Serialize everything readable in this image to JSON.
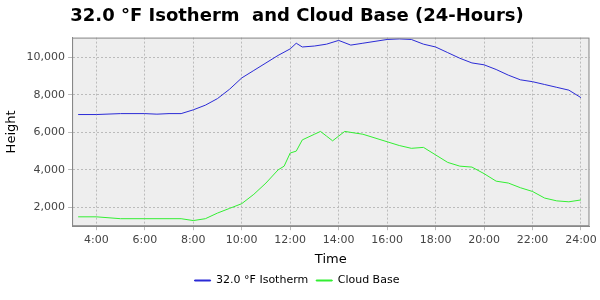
{
  "chart_data": {
    "type": "line",
    "title": "32.0 °F Isotherm  and Cloud Base (24-Hours)",
    "x_label": "Time",
    "y_label": "Height",
    "xlim": [
      3,
      24.35
    ],
    "xticks": [
      {
        "value": 4,
        "label": "4:00"
      },
      {
        "value": 6,
        "label": "6:00"
      },
      {
        "value": 8,
        "label": "8:00"
      },
      {
        "value": 10,
        "label": "10:00"
      },
      {
        "value": 12,
        "label": "12:00"
      },
      {
        "value": 14,
        "label": "14:00"
      },
      {
        "value": 16,
        "label": "16:00"
      },
      {
        "value": 18,
        "label": "18:00"
      },
      {
        "value": 20,
        "label": "20:00"
      },
      {
        "value": 22,
        "label": "22:00"
      },
      {
        "value": 24,
        "label": "24:00"
      }
    ],
    "ylim": [
      1000,
      11050
    ],
    "yticks": [
      {
        "value": 2000,
        "label": "2,000"
      },
      {
        "value": 4000,
        "label": "4,000"
      },
      {
        "value": 6000,
        "label": "6,000"
      },
      {
        "value": 8000,
        "label": "8,000"
      },
      {
        "value": 10000,
        "label": "10,000"
      }
    ],
    "grid": true,
    "legend": "bottom",
    "series": [
      {
        "name": "32.0 °F Isotherm",
        "color": "#2b2bd6",
        "x": [
          3.25,
          4,
          5,
          6,
          6.5,
          7,
          7.5,
          8,
          8.5,
          9,
          9.5,
          10,
          10.5,
          11,
          11.5,
          12,
          12.25,
          12.5,
          13,
          13.5,
          14,
          14.5,
          15,
          15.5,
          16,
          16.5,
          17,
          17.5,
          18,
          18.5,
          19,
          19.5,
          20,
          20.5,
          21,
          21.5,
          22,
          22.5,
          23,
          23.5,
          24
        ],
        "values": [
          6950,
          6950,
          7000,
          7000,
          6970,
          7000,
          7000,
          7200,
          7450,
          7800,
          8300,
          8900,
          9300,
          9700,
          10100,
          10450,
          10750,
          10550,
          10600,
          10700,
          10900,
          10650,
          10750,
          10850,
          10950,
          10980,
          10950,
          10700,
          10550,
          10250,
          9950,
          9700,
          9600,
          9350,
          9050,
          8800,
          8700,
          8550,
          8400,
          8250,
          7850
        ]
      },
      {
        "name": "Cloud Base",
        "color": "#33ee33",
        "x": [
          3.25,
          4,
          5,
          6,
          7,
          7.5,
          8,
          8.5,
          9,
          9.5,
          10,
          10.5,
          11,
          11.5,
          11.75,
          12,
          12.25,
          12.5,
          13,
          13.25,
          13.5,
          13.75,
          14,
          14.25,
          14.5,
          15,
          15.5,
          16,
          16.5,
          17,
          17.5,
          18,
          18.5,
          19,
          19.5,
          20,
          20.5,
          21,
          21.5,
          22,
          22.5,
          23,
          23.5,
          24
        ],
        "values": [
          1500,
          1500,
          1400,
          1400,
          1400,
          1400,
          1300,
          1400,
          1700,
          1950,
          2200,
          2700,
          3300,
          4000,
          4200,
          4900,
          5000,
          5600,
          5900,
          6050,
          5800,
          5550,
          5800,
          6050,
          6000,
          5900,
          5700,
          5500,
          5300,
          5150,
          5200,
          4800,
          4400,
          4200,
          4150,
          3800,
          3400,
          3300,
          3050,
          2850,
          2500,
          2350,
          2300,
          2400
        ]
      }
    ]
  }
}
